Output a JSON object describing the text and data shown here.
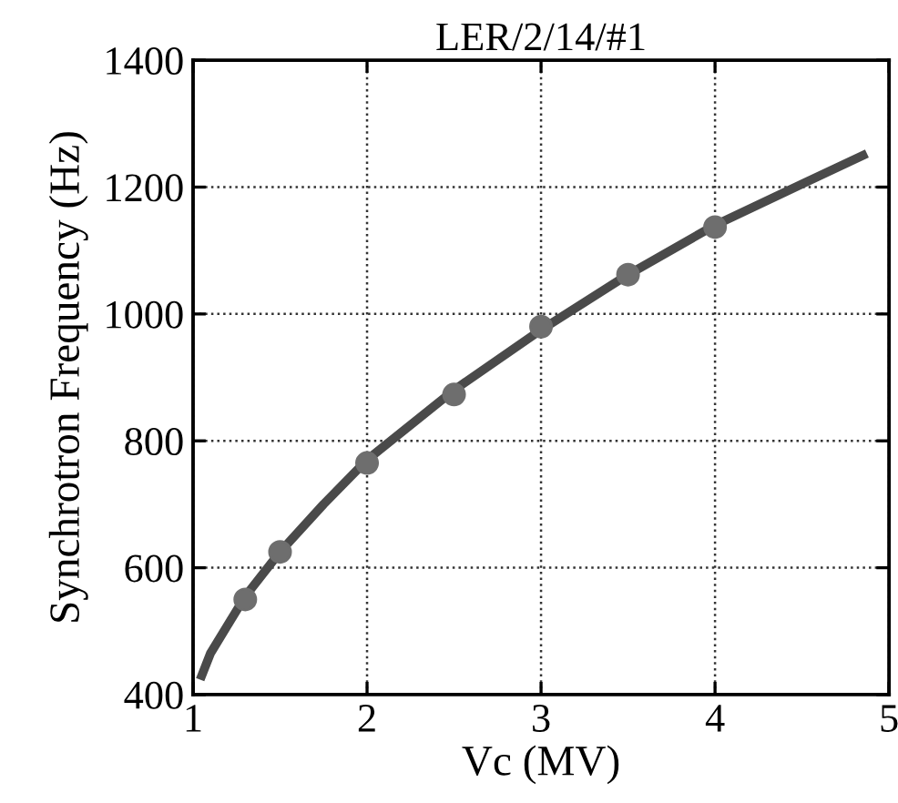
{
  "chart_data": {
    "type": "scatter",
    "title": "LER/2/14/#1",
    "xlabel": "Vc (MV)",
    "ylabel": "Synchrotron Frequency (Hz)",
    "xlim": [
      1,
      5
    ],
    "xticks": [
      1,
      2,
      3,
      4,
      5
    ],
    "ylim": [
      400,
      1400
    ],
    "yticks": [
      400,
      600,
      800,
      1000,
      1200,
      1400
    ],
    "grid": true,
    "series": [
      {
        "type": "line",
        "color": "#4a4a4a",
        "x": [
          1.05,
          1.1,
          1.2,
          1.3,
          1.5,
          1.75,
          2,
          2.5,
          3,
          3.5,
          4,
          4.5,
          4.85
        ],
        "values": [
          430,
          465,
          510,
          555,
          625,
          700,
          770,
          880,
          975,
          1062,
          1140,
          1205,
          1250
        ],
        "marker": "none",
        "line_style": "solid"
      },
      {
        "color": "#6e6e6e",
        "x": [
          1.3,
          1.5,
          2,
          2.5,
          3,
          3.5,
          4
        ],
        "values": [
          550,
          625,
          765,
          873,
          980,
          1062,
          1137
        ],
        "marker": "circle"
      }
    ]
  }
}
